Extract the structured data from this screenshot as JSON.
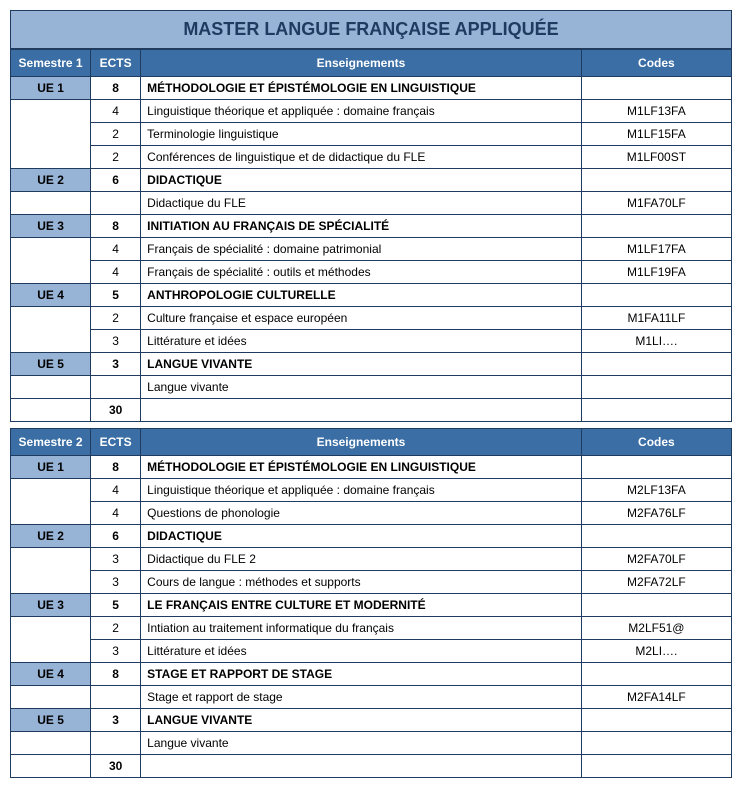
{
  "title": "MASTER LANGUE FRANÇAISE APPLIQUÉE",
  "colors": {
    "header_bg": "#3a6ea5",
    "ue_bg": "#97b4d6",
    "border": "#1f3b60",
    "title_bg": "#97b4d6"
  },
  "columns": {
    "semestre": "Semestre",
    "ects": "ECTS",
    "enseignements": "Enseignements",
    "codes": "Codes"
  },
  "semesters": [
    {
      "num": "1",
      "total_ects": "30",
      "rows": [
        {
          "ue": "UE 1",
          "ects": "8",
          "label": "MÉTHODOLOGIE ET ÉPISTÉMOLOGIE EN LINGUISTIQUE",
          "code": "",
          "head": true,
          "sub": 3
        },
        {
          "ue": "",
          "ects": "4",
          "label": "Linguistique théorique et appliquée : domaine français",
          "code": "M1LF13FA"
        },
        {
          "ue": "",
          "ects": "2",
          "label": "Terminologie linguistique",
          "code": "M1LF15FA"
        },
        {
          "ue": "",
          "ects": "2",
          "label": "Conférences de linguistique et de didactique du FLE",
          "code": "M1LF00ST"
        },
        {
          "ue": "UE 2",
          "ects": "6",
          "label": "DIDACTIQUE",
          "code": "",
          "head": true,
          "sub": 1
        },
        {
          "ue": "",
          "ects": "",
          "label": "Didactique du FLE",
          "code": "M1FA70LF"
        },
        {
          "ue": "UE 3",
          "ects": "8",
          "label": "INITIATION AU FRANÇAIS DE SPÉCIALITÉ",
          "code": "",
          "head": true,
          "sub": 2
        },
        {
          "ue": "",
          "ects": "4",
          "label": "Français de spécialité : domaine patrimonial",
          "code": "M1LF17FA"
        },
        {
          "ue": "",
          "ects": "4",
          "label": "Français de spécialité : outils et méthodes",
          "code": "M1LF19FA"
        },
        {
          "ue": "UE 4",
          "ects": "5",
          "label": "ANTHROPOLOGIE CULTURELLE",
          "code": "",
          "head": true,
          "sub": 2
        },
        {
          "ue": "",
          "ects": "2",
          "label": "Culture française et espace européen",
          "code": "M1FA11LF"
        },
        {
          "ue": "",
          "ects": "3",
          "label": "Littérature et idées",
          "code": "M1LI…."
        },
        {
          "ue": "UE 5",
          "ects": "3",
          "label": "LANGUE VIVANTE",
          "code": "",
          "head": true,
          "sub": 1
        },
        {
          "ue": "",
          "ects": "",
          "label": "Langue vivante",
          "code": ""
        }
      ]
    },
    {
      "num": "2",
      "total_ects": "30",
      "rows": [
        {
          "ue": "UE 1",
          "ects": "8",
          "label": "MÉTHODOLOGIE ET ÉPISTÉMOLOGIE EN LINGUISTIQUE",
          "code": "",
          "head": true,
          "sub": 2
        },
        {
          "ue": "",
          "ects": "4",
          "label": "Linguistique théorique et appliquée : domaine français",
          "code": "M2LF13FA"
        },
        {
          "ue": "",
          "ects": "4",
          "label": "Questions de phonologie",
          "code": "M2FA76LF"
        },
        {
          "ue": "UE 2",
          "ects": "6",
          "label": "DIDACTIQUE",
          "code": "",
          "head": true,
          "sub": 2
        },
        {
          "ue": "",
          "ects": "3",
          "label": "Didactique du FLE 2",
          "code": "M2FA70LF"
        },
        {
          "ue": "",
          "ects": "3",
          "label": "Cours de langue : méthodes et supports",
          "code": "M2FA72LF"
        },
        {
          "ue": "UE 3",
          "ects": "5",
          "label": "LE FRANÇAIS ENTRE CULTURE ET MODERNITÉ",
          "code": "",
          "head": true,
          "sub": 2
        },
        {
          "ue": "",
          "ects": "2",
          "label": "Intiation au traitement informatique du français",
          "code": "M2LF51@"
        },
        {
          "ue": "",
          "ects": "3",
          "label": "Littérature et idées",
          "code": "M2LI…."
        },
        {
          "ue": "UE 4",
          "ects": "8",
          "label": "STAGE ET RAPPORT DE STAGE",
          "code": "",
          "head": true,
          "sub": 1
        },
        {
          "ue": "",
          "ects": "",
          "label": "Stage et rapport de stage",
          "code": "M2FA14LF"
        },
        {
          "ue": "UE 5",
          "ects": "3",
          "label": "LANGUE VIVANTE",
          "code": "",
          "head": true,
          "sub": 1
        },
        {
          "ue": "",
          "ects": "",
          "label": "Langue vivante",
          "code": ""
        }
      ]
    }
  ]
}
